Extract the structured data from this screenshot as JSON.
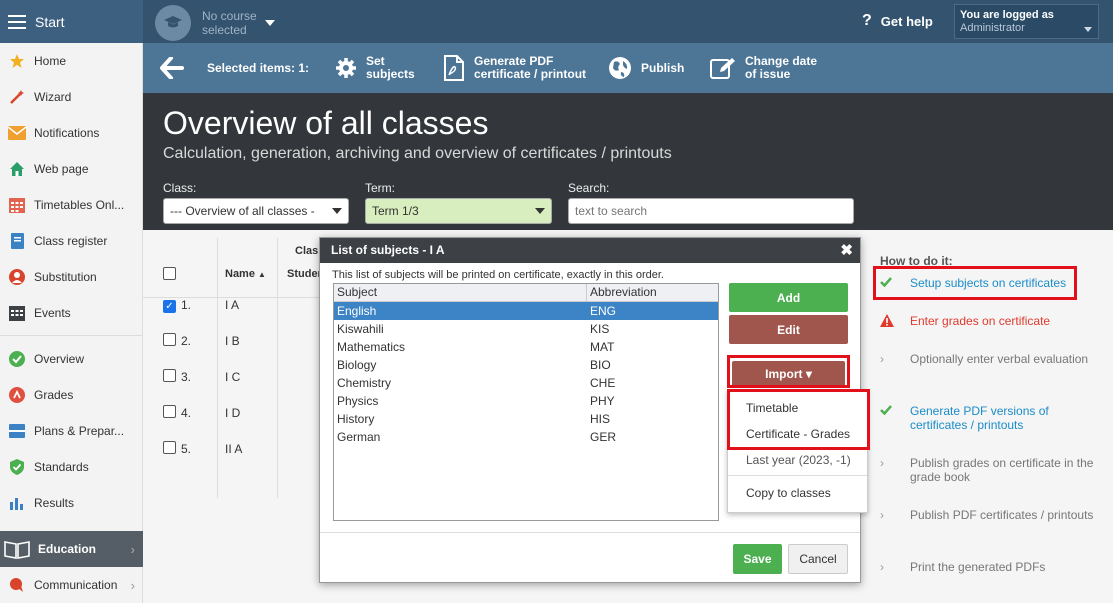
{
  "topbar": {
    "start_label": "Start",
    "course_line1": "No course",
    "course_line2": "selected",
    "help_label": "Get help",
    "login_line1": "You are logged as",
    "login_role": "Administrator"
  },
  "sidebar": {
    "items": [
      {
        "label": "Home",
        "icon": "star-icon"
      },
      {
        "label": "Wizard",
        "icon": "magic-wand-icon"
      },
      {
        "label": "Notifications",
        "icon": "envelope-icon"
      },
      {
        "label": "Web page",
        "icon": "house-icon"
      },
      {
        "label": "Timetables Onl...",
        "icon": "calendar-icon"
      },
      {
        "label": "Class register",
        "icon": "notebook-icon"
      },
      {
        "label": "Substitution",
        "icon": "person-icon"
      },
      {
        "label": "Events",
        "icon": "events-icon"
      },
      {
        "label": "Overview",
        "icon": "check-circle-icon"
      },
      {
        "label": "Grades",
        "icon": "grades-icon"
      },
      {
        "label": "Plans & Prepar...",
        "icon": "plans-icon"
      },
      {
        "label": "Standards",
        "icon": "shield-icon"
      },
      {
        "label": "Results",
        "icon": "bar-chart-icon"
      },
      {
        "label": "Education",
        "icon": "book-icon"
      },
      {
        "label": "Communication",
        "icon": "chat-icon"
      }
    ]
  },
  "toolbar": {
    "selected": "Selected items: 1:",
    "set_subjects_1": "Set",
    "set_subjects_2": "subjects",
    "pdf_1": "Generate PDF",
    "pdf_2": "certificate / printout",
    "publish": "Publish",
    "date_1": "Change date",
    "date_2": "of issue"
  },
  "header": {
    "title": "Overview of all classes",
    "subtitle": "Calculation, generation, archiving and overview of certificates / printouts",
    "class_label": "Class:",
    "class_value": "--- Overview of all classes -",
    "term_label": "Term:",
    "term_value": "Term 1/3",
    "search_label": "Search:",
    "search_placeholder": "text to search"
  },
  "table": {
    "col_class": "Clas",
    "col_name": "Name",
    "col_student": "Studen",
    "rows": [
      {
        "num": "1.",
        "name": "I A",
        "checked": true
      },
      {
        "num": "2.",
        "name": "I B",
        "checked": false
      },
      {
        "num": "3.",
        "name": "I C",
        "checked": false
      },
      {
        "num": "4.",
        "name": "I D",
        "checked": false
      },
      {
        "num": "5.",
        "name": "II A",
        "checked": false
      }
    ]
  },
  "howto": {
    "title": "How to do it:",
    "steps": [
      {
        "text": "Setup subjects on certificates",
        "status": "done"
      },
      {
        "text": "Enter grades on certificate",
        "status": "warning"
      },
      {
        "text": "Optionally enter verbal evaluation",
        "status": "todo"
      },
      {
        "text": "Generate PDF versions of certificates / printouts",
        "status": "done"
      },
      {
        "text": "Publish grades on certificate in the grade book",
        "status": "todo"
      },
      {
        "text": "Publish PDF certificates / printouts",
        "status": "todo"
      },
      {
        "text": "Print the generated PDFs",
        "status": "todo"
      }
    ]
  },
  "modal": {
    "title": "List of subjects - I A",
    "description": "This list of subjects will be printed on certificate, exactly in this order.",
    "col_subject": "Subject",
    "col_abbrev": "Abbreviation",
    "subjects": [
      {
        "name": "English",
        "abbr": "ENG"
      },
      {
        "name": "Kiswahili",
        "abbr": "KIS"
      },
      {
        "name": "Mathematics",
        "abbr": "MAT"
      },
      {
        "name": "Biology",
        "abbr": "BIO"
      },
      {
        "name": "Chemistry",
        "abbr": "CHE"
      },
      {
        "name": "Physics",
        "abbr": "PHY"
      },
      {
        "name": "History",
        "abbr": "HIS"
      },
      {
        "name": "German",
        "abbr": "GER"
      }
    ],
    "add_label": "Add",
    "edit_label": "Edit",
    "import_label": "Import ▾",
    "save_label": "Save",
    "cancel_label": "Cancel"
  },
  "import_menu": {
    "items": [
      "Timetable",
      "Certificate - Grades",
      "Last year (2023, -1)",
      "Copy to classes"
    ]
  },
  "colors": {
    "topbar": "#33536f",
    "toolbar": "#4c7596",
    "header": "#33373b",
    "add_green": "#4caf50",
    "edit_brown": "#a0564c",
    "link_blue": "#1a8cc8",
    "warn_red": "#e0392d",
    "highlight_red": "#e2101b"
  }
}
